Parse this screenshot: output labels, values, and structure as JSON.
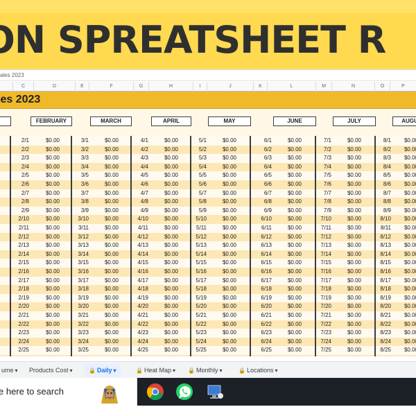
{
  "banner": {
    "title": "ON SPREATSHEET R"
  },
  "file_tab": {
    "label": "ales 2023"
  },
  "columns": [
    "C",
    "D",
    "E",
    "F",
    "G",
    "H",
    "I",
    "J",
    "K",
    "L",
    "M",
    "N",
    "O",
    "P"
  ],
  "sheet_title": "les 2023",
  "months": [
    {
      "label": "Y",
      "days_prefix": "1",
      "show_days": false
    },
    {
      "label": "FEBRUARY",
      "month_num": 2
    },
    {
      "label": "MARCH",
      "month_num": 3
    },
    {
      "label": "APRIL",
      "month_num": 4
    },
    {
      "label": "MAY",
      "month_num": 5
    },
    {
      "label": "JUNE",
      "month_num": 6
    },
    {
      "label": "JULY",
      "month_num": 7
    },
    {
      "label": "AUGU",
      "month_num": 8
    }
  ],
  "amount_value": "$0.00",
  "day_count": 25,
  "tabs": [
    {
      "label": "ume",
      "lock": false,
      "caret": true
    },
    {
      "label": "Products Cost",
      "lock": false,
      "caret": true
    },
    {
      "label": "Daily",
      "lock": true,
      "caret": true,
      "active": true
    },
    {
      "label": "Heat Map",
      "lock": true,
      "caret": true
    },
    {
      "label": "Monthly",
      "lock": true,
      "caret": true
    },
    {
      "label": "Locations",
      "lock": true,
      "caret": true
    }
  ],
  "taskbar": {
    "search_text": "e here to search",
    "apps": [
      "chrome-icon",
      "whatsapp-icon",
      "computer-icon"
    ]
  },
  "colors": {
    "banner": "#ffd94f",
    "title_bar": "#f0b929",
    "row_odd": "#fde7b4",
    "row_even": "#fffaf0",
    "taskbar": "#1c2027"
  }
}
